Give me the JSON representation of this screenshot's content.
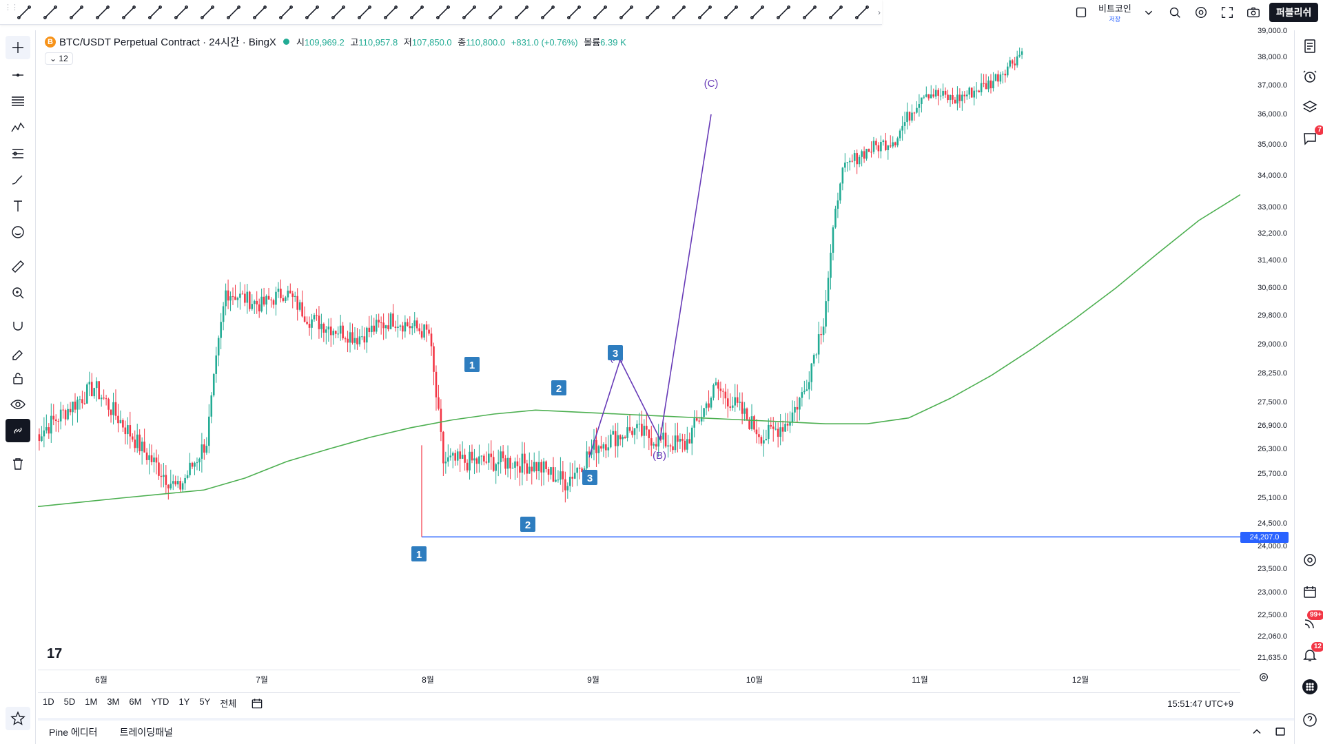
{
  "legend": {
    "coin_symbol": "B",
    "title": "BTC/USDT Perpetual Contract · 24시간 · BingX",
    "open_label": "시",
    "open": "109,969.2",
    "high_label": "고",
    "high": "110,957.8",
    "low_label": "저",
    "low": "107,850.0",
    "close_label": "종",
    "close": "110,800.0",
    "change": "+831.0 (+0.76%)",
    "volume_label": "볼륨",
    "volume": "6.39 K",
    "interval_chip": "12"
  },
  "top_right": {
    "symbol_label": "비트코인",
    "save_label": "저장",
    "publish_label": "퍼블리쉬"
  },
  "price_axis": {
    "ticks": [
      "39,000.0",
      "38,000.0",
      "37,000.0",
      "36,000.0",
      "35,000.0",
      "34,000.0",
      "33,000.0",
      "32,200.0",
      "31,400.0",
      "30,600.0",
      "29,800.0",
      "29,000.0",
      "28,250.0",
      "27,500.0",
      "26,900.0",
      "26,300.0",
      "25,700.0",
      "25,100.0",
      "24,500.0",
      "24,000.0",
      "23,500.0",
      "23,000.0",
      "22,500.0",
      "22,060.0",
      "21,635.0"
    ],
    "current_label": "24,207.0"
  },
  "time_axis": {
    "ticks": [
      "6월",
      "7월",
      "8월",
      "9월",
      "10월",
      "11월",
      "12월"
    ]
  },
  "range_bar": {
    "buttons": [
      "1D",
      "5D",
      "1M",
      "3M",
      "6M",
      "YTD",
      "1Y",
      "5Y",
      "전체"
    ],
    "clock": "15:51:47 UTC+9"
  },
  "bottom_panel": {
    "tabs": [
      "Pine 에디터",
      "트레이딩패널"
    ]
  },
  "badges": {
    "alerts": "7",
    "feed": "99+",
    "notifications": "12"
  },
  "wave_labels": {
    "c": "(C)",
    "b": "(B)",
    "a": "(A)",
    "n1": "1",
    "n2": "2",
    "n3": "3"
  },
  "colors": {
    "up": "#22ab94",
    "down": "#f23645",
    "ma": "#4caf50",
    "hline": "#2962ff",
    "abc": "#673ab7",
    "marker": "#2e7dbf"
  },
  "chart_data": {
    "type": "candlestick",
    "moving_average": [
      24900,
      25000,
      25100,
      25200,
      25300,
      25600,
      26000,
      26300,
      26600,
      26850,
      27050,
      27200,
      27300,
      27250,
      27200,
      27150,
      27100,
      27050,
      27000,
      26950,
      26950,
      27100,
      27600,
      28200,
      28900,
      29700,
      30600,
      31600,
      32600,
      33400
    ],
    "horizontal_line": 24207.0,
    "abc_path": [
      [
        26100,
        "9/27"
      ],
      [
        28600,
        "10/1"
      ],
      [
        26550,
        "10/11"
      ],
      [
        36000,
        "10/23"
      ]
    ]
  }
}
